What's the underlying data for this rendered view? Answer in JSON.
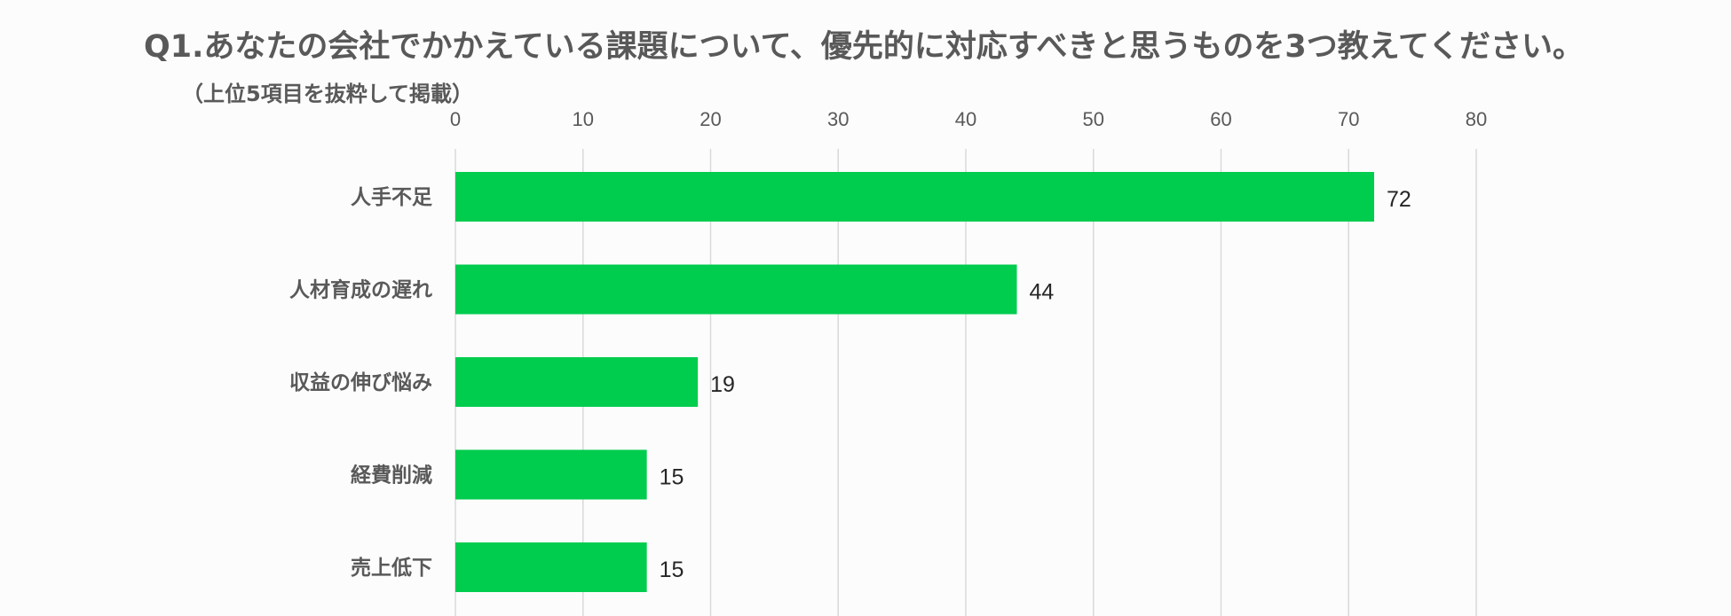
{
  "header": {
    "title": "Q1.あなたの会社でかかえている課題について、優先的に対応すべきと思うものを3つ教えてください。",
    "subtitle": "（上位5項目を抜粋して掲載）"
  },
  "colors": {
    "bar": "#00cc4e",
    "grid": "#d9d9d9",
    "text": "#595959"
  },
  "chart_data": {
    "type": "bar",
    "orientation": "horizontal",
    "categories": [
      "人手不足",
      "人材育成の遅れ",
      "収益の伸び悩み",
      "経費削減",
      "売上低下"
    ],
    "values": [
      72,
      44,
      19,
      15,
      15
    ],
    "xlim": [
      0,
      80
    ],
    "ticks": [
      "0",
      "10",
      "20",
      "30",
      "40",
      "50",
      "60",
      "70",
      "80"
    ],
    "xaxis_position": "top",
    "grid": true,
    "data_labels": [
      "72",
      "44",
      "19",
      "15",
      "15"
    ]
  }
}
